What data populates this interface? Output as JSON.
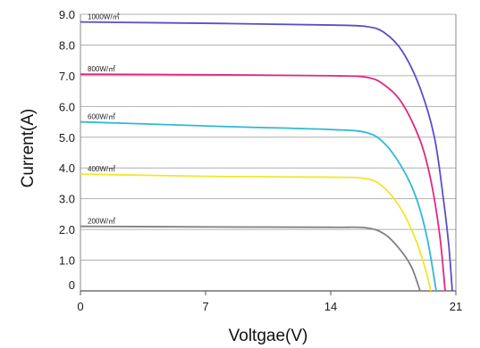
{
  "chart_data": {
    "type": "line",
    "title": "",
    "xlabel": "Voltgae(V)",
    "ylabel": "Current(A)",
    "xlim": [
      0,
      21
    ],
    "ylim": [
      0,
      9
    ],
    "x_ticks": [
      "0",
      "7",
      "14",
      "21"
    ],
    "x_tick_values": [
      0,
      7,
      14,
      21
    ],
    "y_ticks": [
      "0",
      "1.0",
      "2.0",
      "3.0",
      "4.0",
      "5.0",
      "6.0",
      "7.0",
      "8.0",
      "9.0"
    ],
    "y_tick_values": [
      0,
      1,
      2,
      3,
      4,
      5,
      6,
      7,
      8,
      9
    ],
    "grid": "horizontal",
    "series": [
      {
        "name": "1000W/㎡",
        "color": "#5a4fc8",
        "points": [
          [
            0,
            8.75
          ],
          [
            8,
            8.7
          ],
          [
            14,
            8.65
          ],
          [
            16,
            8.6
          ],
          [
            17,
            8.4
          ],
          [
            18,
            7.8
          ],
          [
            19,
            6.6
          ],
          [
            19.8,
            5.0
          ],
          [
            20.3,
            3.0
          ],
          [
            20.6,
            1.5
          ],
          [
            20.8,
            0
          ]
        ]
      },
      {
        "name": "800W/㎡",
        "color": "#e0287f",
        "points": [
          [
            0,
            7.05
          ],
          [
            8,
            7.03
          ],
          [
            14,
            7.0
          ],
          [
            16,
            6.95
          ],
          [
            17,
            6.7
          ],
          [
            18,
            6.1
          ],
          [
            19,
            4.9
          ],
          [
            19.6,
            3.6
          ],
          [
            20.1,
            1.8
          ],
          [
            20.4,
            0
          ]
        ]
      },
      {
        "name": "600W/㎡",
        "color": "#2fb9d6",
        "points": [
          [
            0,
            5.5
          ],
          [
            8,
            5.35
          ],
          [
            14,
            5.25
          ],
          [
            16,
            5.15
          ],
          [
            17,
            4.8
          ],
          [
            18,
            4.0
          ],
          [
            18.8,
            3.0
          ],
          [
            19.4,
            1.7
          ],
          [
            19.9,
            0
          ]
        ]
      },
      {
        "name": "400W/㎡",
        "color": "#f2e62a",
        "points": [
          [
            0,
            3.8
          ],
          [
            8,
            3.72
          ],
          [
            14,
            3.7
          ],
          [
            16,
            3.65
          ],
          [
            17,
            3.35
          ],
          [
            18,
            2.6
          ],
          [
            18.8,
            1.6
          ],
          [
            19.3,
            0.7
          ],
          [
            19.6,
            0
          ]
        ]
      },
      {
        "name": "200W/㎡",
        "color": "#808080",
        "points": [
          [
            0,
            2.1
          ],
          [
            8,
            2.08
          ],
          [
            14,
            2.07
          ],
          [
            16,
            2.05
          ],
          [
            17,
            1.85
          ],
          [
            17.8,
            1.4
          ],
          [
            18.5,
            0.8
          ],
          [
            19,
            0
          ]
        ]
      }
    ]
  }
}
